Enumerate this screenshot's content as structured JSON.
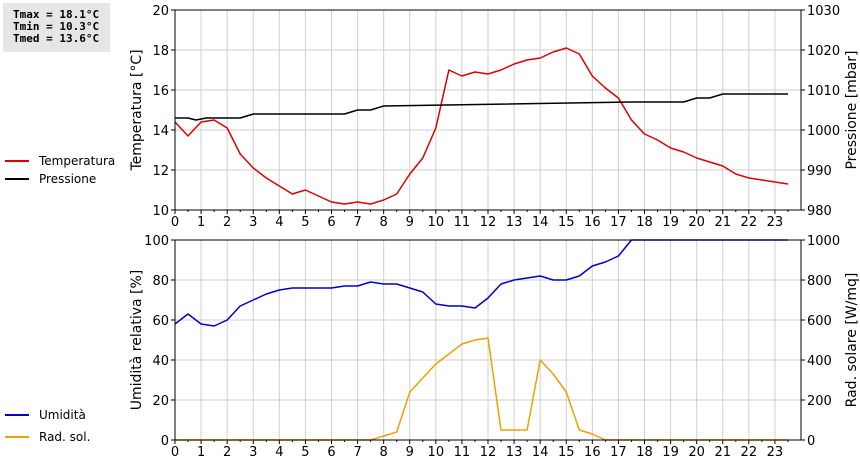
{
  "stats": {
    "tmax": "Tmax = 18.1°C",
    "tmin": "Tmin = 10.3°C",
    "tmed": "Tmed = 13.6°C"
  },
  "chart_data": [
    {
      "type": "line",
      "ylabel": "Temperatura [°C]",
      "ylabel_right": "Pressione [mbar]",
      "xlim": [
        0,
        24
      ],
      "x_ticks": [
        "0",
        "1",
        "2",
        "3",
        "4",
        "5",
        "6",
        "7",
        "8",
        "9",
        "10",
        "11",
        "12",
        "13",
        "14",
        "15",
        "16",
        "17",
        "18",
        "19",
        "20",
        "21",
        "22",
        "23"
      ],
      "ylim": [
        10,
        20
      ],
      "y_ticks": [
        "10",
        "12",
        "14",
        "16",
        "18",
        "20"
      ],
      "ylim_right": [
        980,
        1030
      ],
      "y_ticks_right": [
        "980",
        "990",
        "1000",
        "1010",
        "1020",
        "1030"
      ],
      "legend_position": "left",
      "grid": true,
      "series": [
        {
          "name": "Temperatura",
          "color": "#dd0000",
          "axis": "left",
          "x": [
            0,
            0.5,
            1,
            1.5,
            2,
            2.5,
            3,
            3.5,
            4,
            4.5,
            5,
            5.5,
            6,
            6.5,
            7,
            7.5,
            8,
            8.5,
            9,
            9.5,
            10,
            10.5,
            11,
            11.5,
            12,
            12.5,
            13,
            13.5,
            14,
            14.5,
            15,
            15.5,
            16,
            16.5,
            17,
            17.5,
            18,
            18.5,
            19,
            19.5,
            20,
            20.5,
            21,
            21.5,
            22,
            22.5,
            23,
            23.5
          ],
          "y": [
            14.4,
            13.7,
            14.4,
            14.5,
            14.1,
            12.8,
            12.1,
            11.6,
            11.2,
            10.8,
            11.0,
            10.7,
            10.4,
            10.3,
            10.4,
            10.3,
            10.5,
            10.8,
            11.8,
            12.6,
            14.1,
            17.0,
            16.7,
            16.9,
            16.8,
            17.0,
            17.3,
            17.5,
            17.6,
            17.9,
            18.1,
            17.8,
            16.7,
            16.1,
            15.6,
            14.5,
            13.8,
            13.5,
            13.1,
            12.9,
            12.6,
            12.4,
            12.2,
            11.8,
            11.6,
            11.5,
            11.4,
            11.3
          ]
        },
        {
          "name": "Pressione",
          "color": "#000000",
          "axis": "right",
          "x": [
            0,
            0.5,
            0.8,
            1.2,
            2.5,
            3,
            6.5,
            7,
            7.5,
            8,
            17.5,
            19.5,
            20,
            20.5,
            21,
            23.5
          ],
          "y": [
            1003,
            1003,
            1002.5,
            1003,
            1003,
            1004,
            1004,
            1005,
            1005,
            1006,
            1007,
            1007,
            1008,
            1008,
            1009,
            1009
          ]
        }
      ]
    },
    {
      "type": "line",
      "ylabel": "Umidità relativa [%]",
      "ylabel_right": "Rad. solare [W/mq]",
      "xlim": [
        0,
        24
      ],
      "x_ticks": [
        "0",
        "1",
        "2",
        "3",
        "4",
        "5",
        "6",
        "7",
        "8",
        "9",
        "10",
        "11",
        "12",
        "13",
        "14",
        "15",
        "16",
        "17",
        "18",
        "19",
        "20",
        "21",
        "22",
        "23"
      ],
      "ylim": [
        0,
        100
      ],
      "y_ticks": [
        "0",
        "20",
        "40",
        "60",
        "80",
        "100"
      ],
      "ylim_right": [
        0,
        1000
      ],
      "y_ticks_right": [
        "0",
        "200",
        "400",
        "600",
        "800",
        "1000"
      ],
      "legend_position": "left",
      "grid": true,
      "series": [
        {
          "name": "Umidità",
          "color": "#0000cc",
          "axis": "left",
          "x": [
            0,
            0.5,
            1,
            1.5,
            2,
            2.5,
            3,
            3.5,
            4,
            4.5,
            5,
            5.5,
            6,
            6.5,
            7,
            7.5,
            8,
            8.5,
            9,
            9.5,
            10,
            10.5,
            11,
            11.5,
            12,
            12.5,
            13,
            13.5,
            14,
            14.5,
            15,
            15.5,
            16,
            16.5,
            17,
            17.5,
            18,
            23.5
          ],
          "y": [
            58,
            63,
            58,
            57,
            60,
            67,
            70,
            73,
            75,
            76,
            76,
            76,
            76,
            77,
            77,
            79,
            78,
            78,
            76,
            74,
            68,
            67,
            67,
            66,
            71,
            78,
            80,
            81,
            82,
            80,
            80,
            82,
            87,
            89,
            92,
            100,
            100,
            100
          ]
        },
        {
          "name": "Rad. sol.",
          "color": "#f0a000",
          "axis": "right",
          "x": [
            0,
            7.5,
            8,
            8.5,
            9,
            9.5,
            10,
            10.5,
            11,
            11.5,
            12,
            12.5,
            13,
            13.5,
            14,
            14.5,
            15,
            15.5,
            16,
            16.5,
            23.5
          ],
          "y": [
            0,
            0,
            20,
            40,
            240,
            310,
            380,
            430,
            480,
            500,
            510,
            50,
            50,
            50,
            400,
            330,
            240,
            50,
            30,
            0,
            0
          ]
        }
      ]
    }
  ]
}
